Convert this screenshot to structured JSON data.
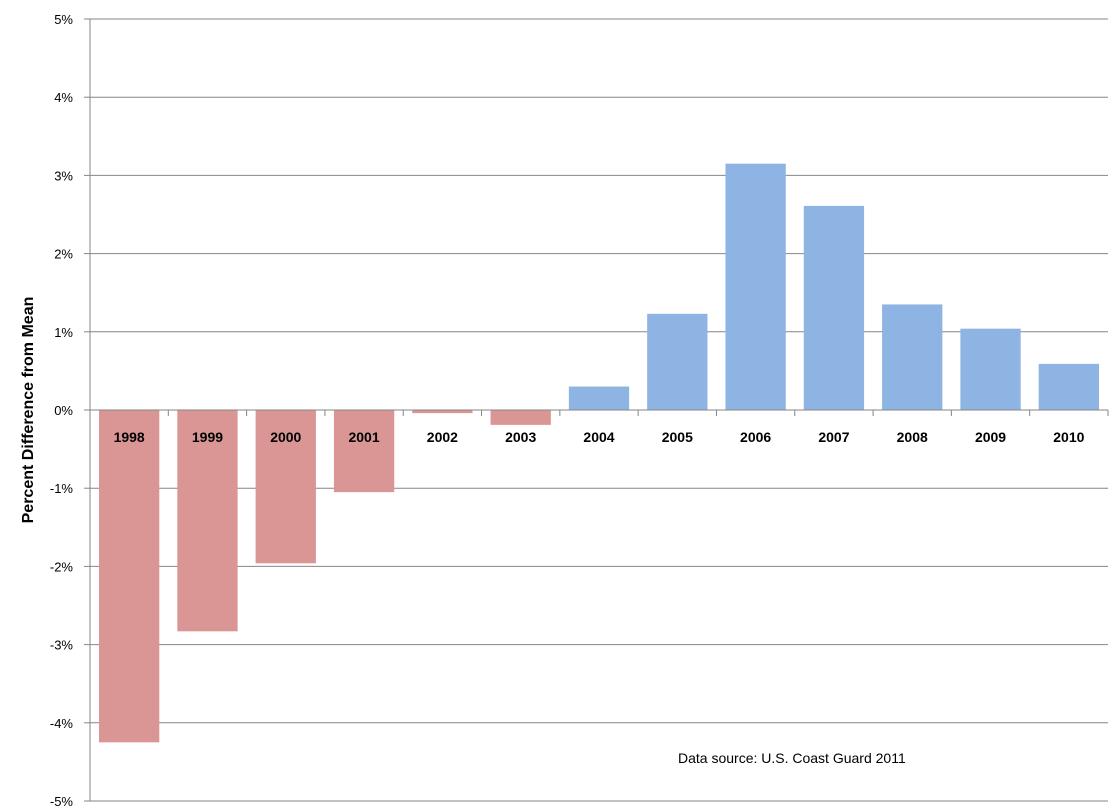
{
  "chart_data": {
    "type": "bar",
    "categories": [
      "1998",
      "1999",
      "2000",
      "2001",
      "2002",
      "2003",
      "2004",
      "2005",
      "2006",
      "2007",
      "2008",
      "2009",
      "2010"
    ],
    "values": [
      -4.25,
      -2.83,
      -1.96,
      -1.05,
      -0.04,
      -0.19,
      0.3,
      1.23,
      3.15,
      2.61,
      1.35,
      1.04,
      0.59
    ],
    "ylabel": "Percent Difference from Mean",
    "xlabel": "",
    "ylim": [
      -5,
      5
    ],
    "yticks": [
      "5%",
      "4%",
      "3%",
      "2%",
      "1%",
      "0%",
      "-1%",
      "-2%",
      "-3%",
      "-4%",
      "-5%"
    ],
    "grid": true,
    "annotation": "Data source: U.S. Coast Guard 2011",
    "colors": {
      "negative": "#d99694",
      "positive": "#8eb4e3",
      "grid": "#868686",
      "axis": "#868686"
    }
  }
}
